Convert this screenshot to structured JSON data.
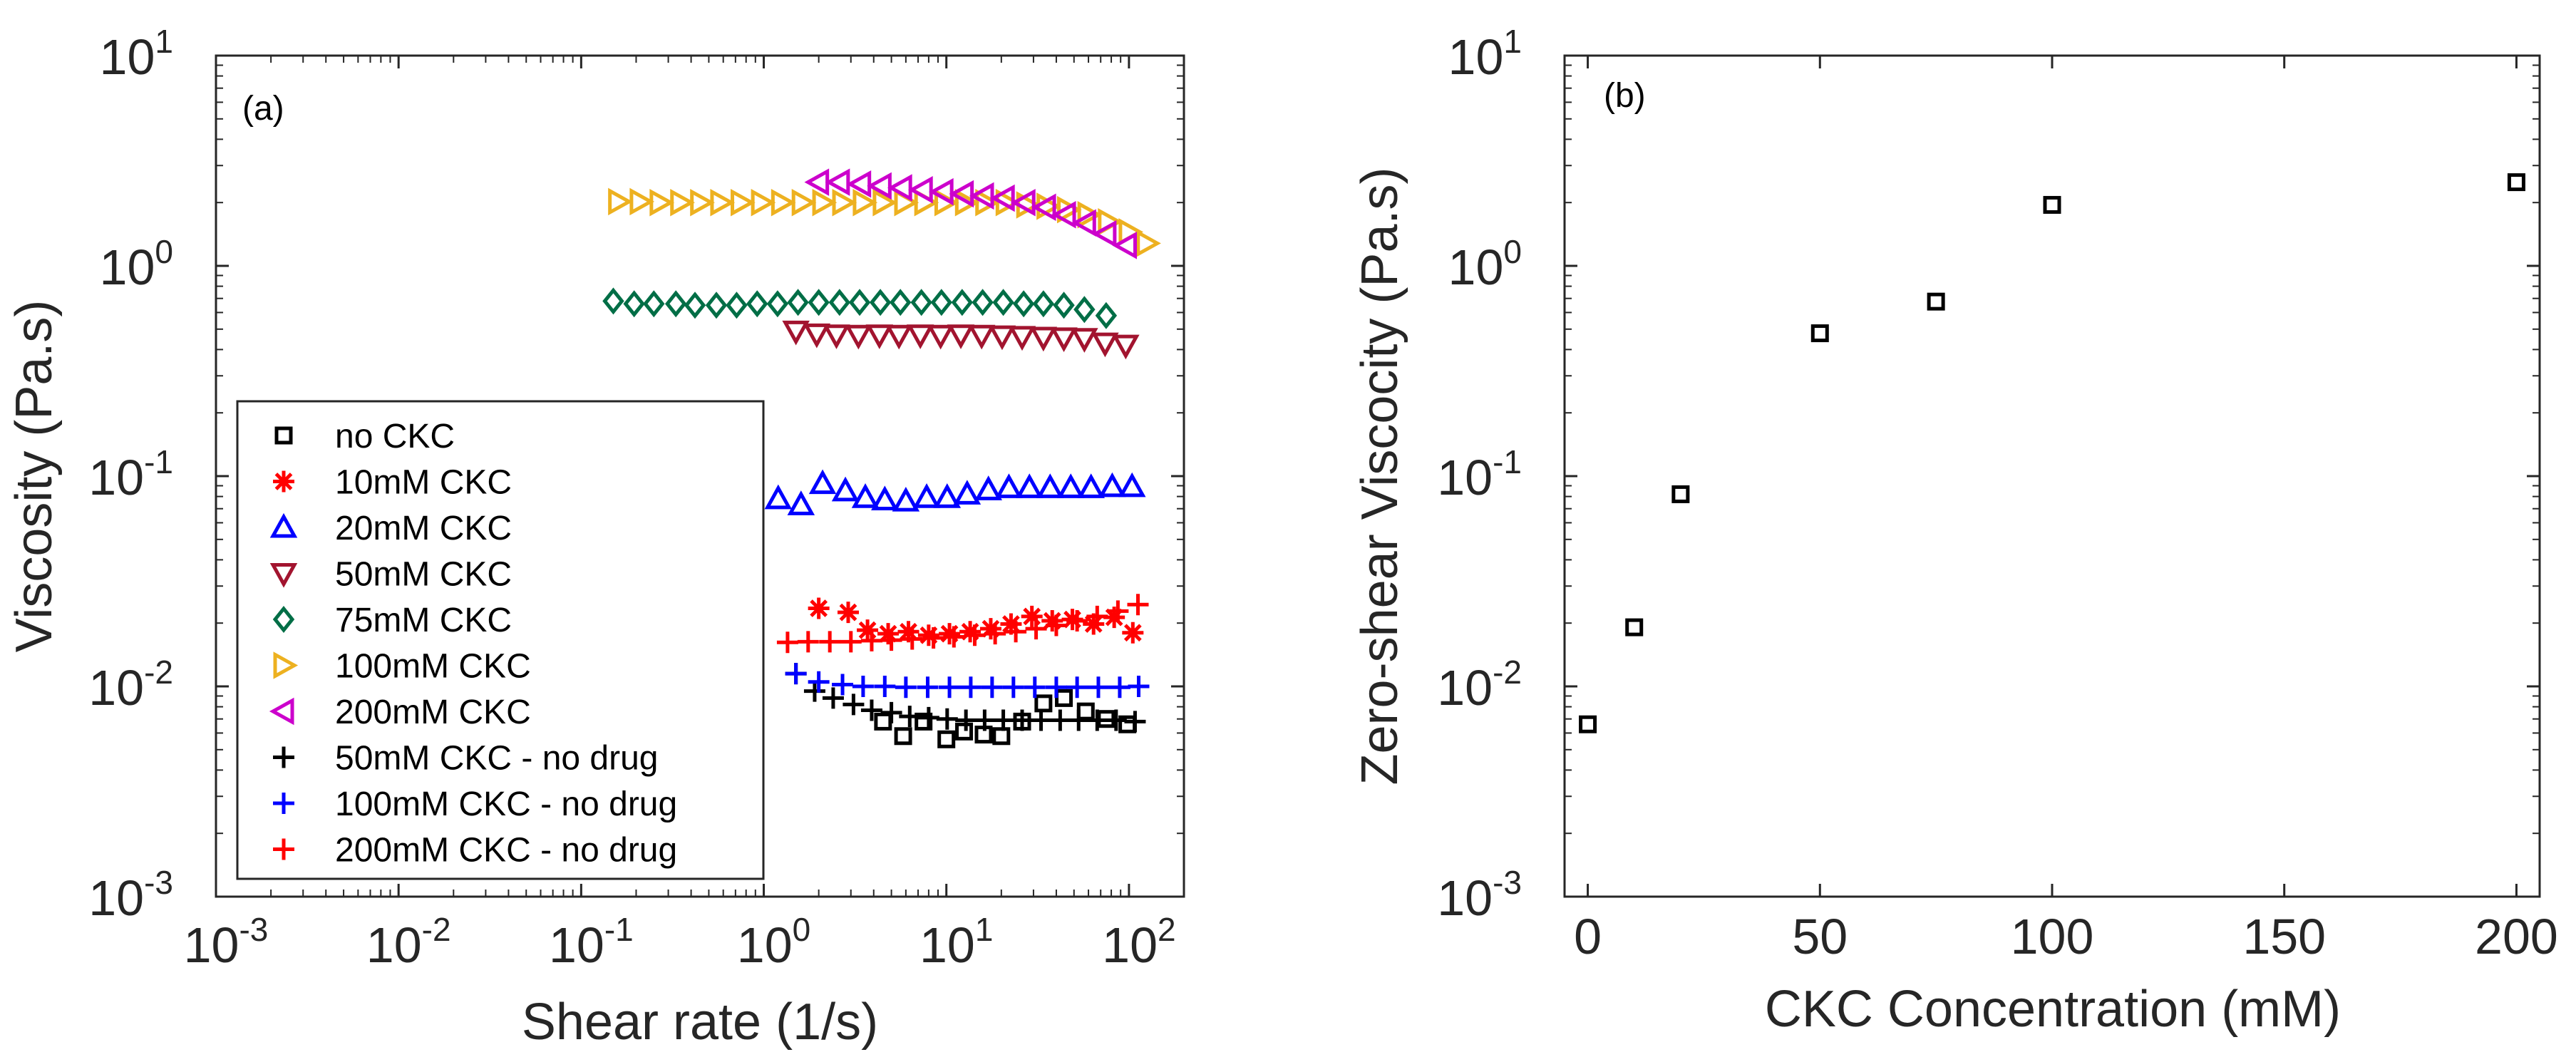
{
  "chart_data": [
    {
      "type": "scatter",
      "panel_label": "(a)",
      "xlabel": "Shear rate (1/s)",
      "ylabel": "Viscosity (Pa.s)",
      "xscale": "log",
      "yscale": "log",
      "xlim": [
        0.001,
        200
      ],
      "ylim": [
        0.001,
        10
      ],
      "grid": false,
      "legend_position": "bottom-left",
      "x_ticks": [
        {
          "base": "10",
          "exp": "-3",
          "value": 0.001
        },
        {
          "base": "10",
          "exp": "-2",
          "value": 0.01
        },
        {
          "base": "10",
          "exp": "-1",
          "value": 0.1
        },
        {
          "base": "10",
          "exp": "0",
          "value": 1
        },
        {
          "base": "10",
          "exp": "1",
          "value": 10
        },
        {
          "base": "10",
          "exp": "2",
          "value": 100
        }
      ],
      "y_ticks": [
        {
          "base": "10",
          "exp": "-3",
          "value": 0.001
        },
        {
          "base": "10",
          "exp": "-2",
          "value": 0.01
        },
        {
          "base": "10",
          "exp": "-1",
          "value": 0.1
        },
        {
          "base": "10",
          "exp": "0",
          "value": 1
        },
        {
          "base": "10",
          "exp": "1",
          "value": 10
        }
      ],
      "series": [
        {
          "name": "no CKC",
          "marker": "square",
          "color": "#000000",
          "x": [
            4.5,
            5.8,
            7.5,
            10,
            12.5,
            16,
            20,
            26,
            34,
            44,
            58,
            75,
            98
          ],
          "y": [
            0.0068,
            0.0058,
            0.0068,
            0.0056,
            0.0061,
            0.0059,
            0.0058,
            0.0068,
            0.0083,
            0.0088,
            0.0076,
            0.007,
            0.0066
          ]
        },
        {
          "name": "10mM CKC",
          "marker": "asterisk",
          "color": "#ff0000",
          "x": [
            2,
            2.9,
            3.7,
            4.8,
            6.2,
            8,
            10.4,
            13.5,
            17.5,
            22.6,
            29.4,
            38,
            49,
            64,
            83,
            105
          ],
          "y": [
            0.0235,
            0.0225,
            0.0185,
            0.0178,
            0.0182,
            0.0175,
            0.0178,
            0.0182,
            0.0188,
            0.0198,
            0.0215,
            0.0205,
            0.0208,
            0.0198,
            0.0213,
            0.018
          ]
        },
        {
          "name": "20mM CKC",
          "marker": "triangle-up",
          "color": "#0000ff",
          "x": [
            1.2,
            1.6,
            2.1,
            2.8,
            3.6,
            4.6,
            6,
            7.8,
            10.1,
            13,
            17,
            22,
            28.5,
            37,
            48,
            62,
            81,
            104
          ],
          "y": [
            0.078,
            0.073,
            0.092,
            0.085,
            0.079,
            0.077,
            0.076,
            0.079,
            0.079,
            0.082,
            0.086,
            0.088,
            0.088,
            0.088,
            0.088,
            0.088,
            0.089,
            0.089
          ]
        },
        {
          "name": "50mM CKC",
          "marker": "triangle-down",
          "color": "#a2142f",
          "x": [
            1.5,
            1.95,
            2.5,
            3.3,
            4.3,
            5.5,
            7.2,
            9.3,
            12,
            15.6,
            20.2,
            26,
            34,
            44,
            57,
            74,
            96
          ],
          "y": [
            0.49,
            0.475,
            0.47,
            0.468,
            0.47,
            0.468,
            0.47,
            0.468,
            0.47,
            0.468,
            0.465,
            0.462,
            0.458,
            0.455,
            0.452,
            0.43,
            0.42
          ]
        },
        {
          "name": "75mM CKC",
          "marker": "diamond",
          "color": "#006e46",
          "x": [
            0.15,
            0.195,
            0.25,
            0.33,
            0.42,
            0.55,
            0.71,
            0.92,
            1.19,
            1.54,
            2,
            2.6,
            3.35,
            4.35,
            5.6,
            7.3,
            9.4,
            12.2,
            15.8,
            20.5,
            26.5,
            34,
            44,
            57,
            75
          ],
          "y": [
            0.68,
            0.66,
            0.66,
            0.66,
            0.65,
            0.65,
            0.65,
            0.66,
            0.66,
            0.67,
            0.67,
            0.67,
            0.67,
            0.67,
            0.67,
            0.67,
            0.67,
            0.67,
            0.67,
            0.67,
            0.66,
            0.66,
            0.65,
            0.62,
            0.58
          ]
        },
        {
          "name": "100mM CKC",
          "marker": "triangle-right",
          "color": "#edb120",
          "x": [
            0.16,
            0.21,
            0.27,
            0.35,
            0.45,
            0.58,
            0.75,
            0.97,
            1.25,
            1.62,
            2.1,
            2.7,
            3.5,
            4.5,
            5.9,
            7.6,
            9.8,
            12.7,
            16.4,
            21.2,
            27.5,
            35.5,
            46,
            59.5,
            77,
            100,
            125
          ],
          "y": [
            2.02,
            2.02,
            2.0,
            2.0,
            2.0,
            2.0,
            2.0,
            2.0,
            2.0,
            2.0,
            2.0,
            2.0,
            2.0,
            2.0,
            2.0,
            2.0,
            2.0,
            2.0,
            2.0,
            2.0,
            1.95,
            1.92,
            1.85,
            1.75,
            1.62,
            1.45,
            1.28
          ]
        },
        {
          "name": "200mM CKC",
          "marker": "triangle-left",
          "color": "#cc00cc",
          "x": [
            2,
            2.6,
            3.4,
            4.4,
            5.7,
            7.4,
            9.6,
            12.4,
            16,
            20.8,
            27,
            35,
            45,
            58,
            75,
            97
          ],
          "y": [
            2.5,
            2.5,
            2.45,
            2.4,
            2.35,
            2.3,
            2.25,
            2.2,
            2.15,
            2.1,
            2.0,
            1.9,
            1.75,
            1.6,
            1.42,
            1.25
          ]
        },
        {
          "name": "50mM CKC - no drug",
          "marker": "plus",
          "color": "#000000",
          "x": [
            1.5,
            1.9,
            2.4,
            3.1,
            3.9,
            5,
            6.3,
            8,
            10.1,
            12.8,
            16.2,
            20.5,
            26,
            33,
            42,
            53,
            67,
            85,
            108
          ],
          "y": [
            0.0115,
            0.0095,
            0.0088,
            0.0082,
            0.0077,
            0.0075,
            0.0072,
            0.0071,
            0.007,
            0.0069,
            0.0069,
            0.0069,
            0.0069,
            0.0069,
            0.0069,
            0.0069,
            0.0069,
            0.0069,
            0.0068
          ]
        },
        {
          "name": "100mM CKC - no drug",
          "marker": "plus",
          "color": "#0000ff",
          "x": [
            1.5,
            2,
            2.7,
            3.5,
            4.6,
            6,
            7.9,
            10.4,
            13.6,
            17.8,
            23.3,
            30.5,
            40,
            52,
            68,
            89,
            113
          ],
          "y": [
            0.0115,
            0.0105,
            0.0102,
            0.01,
            0.01,
            0.0099,
            0.0099,
            0.0099,
            0.0099,
            0.0099,
            0.0099,
            0.0099,
            0.0099,
            0.0099,
            0.0099,
            0.0099,
            0.01
          ]
        },
        {
          "name": "200mM CKC - no drug",
          "marker": "plus",
          "color": "#ff0000",
          "x": [
            1.35,
            1.75,
            2.3,
            3,
            3.9,
            5,
            6.5,
            8.5,
            11,
            14.3,
            18.5,
            24,
            31,
            40,
            52,
            67,
            87,
            112
          ],
          "y": [
            0.0162,
            0.0163,
            0.0163,
            0.0163,
            0.0165,
            0.0166,
            0.0168,
            0.017,
            0.0172,
            0.0175,
            0.0178,
            0.0182,
            0.0188,
            0.0195,
            0.0205,
            0.0215,
            0.0228,
            0.0245
          ]
        }
      ]
    },
    {
      "type": "scatter",
      "panel_label": "(b)",
      "xlabel": "CKC Concentration (mM)",
      "ylabel": "Zero-shear Viscocity (Pa.s)",
      "xscale": "linear",
      "yscale": "log",
      "xlim": [
        -5,
        205
      ],
      "ylim": [
        0.001,
        10
      ],
      "grid": false,
      "x_ticks": [
        {
          "label": "0",
          "value": 0
        },
        {
          "label": "50",
          "value": 50
        },
        {
          "label": "100",
          "value": 100
        },
        {
          "label": "150",
          "value": 150
        },
        {
          "label": "200",
          "value": 200
        }
      ],
      "y_ticks": [
        {
          "base": "10",
          "exp": "-3",
          "value": 0.001
        },
        {
          "base": "10",
          "exp": "-2",
          "value": 0.01
        },
        {
          "base": "10",
          "exp": "-1",
          "value": 0.1
        },
        {
          "base": "10",
          "exp": "0",
          "value": 1
        },
        {
          "base": "10",
          "exp": "1",
          "value": 10
        }
      ],
      "series": [
        {
          "name": "Zero-shear viscosity",
          "marker": "square",
          "color": "#000000",
          "x": [
            0,
            10,
            20,
            50,
            75,
            100,
            200
          ],
          "y": [
            0.0066,
            0.0191,
            0.082,
            0.478,
            0.676,
            1.95,
            2.5
          ]
        }
      ]
    }
  ]
}
